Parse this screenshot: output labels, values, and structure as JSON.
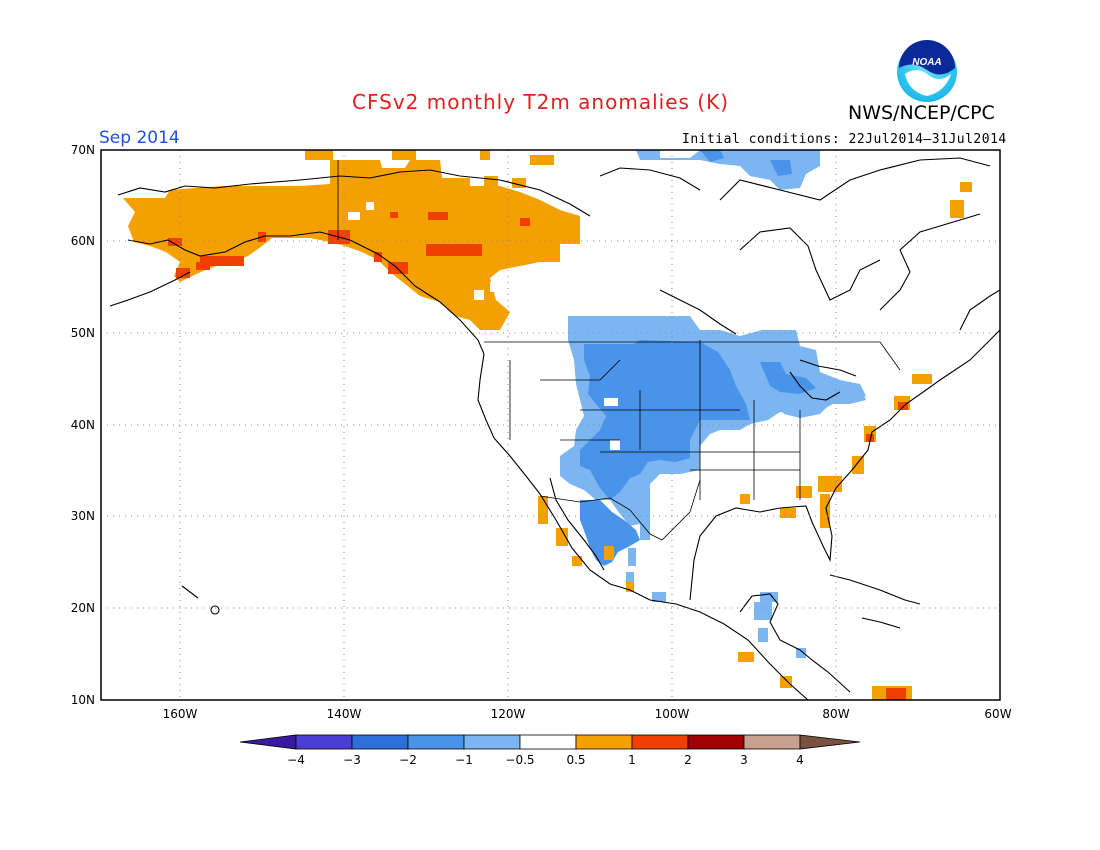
{
  "header": {
    "title": "CFSv2 monthly T2m anomalies (K)",
    "org": "NWS/NCEP/CPC",
    "valid_month": "Sep 2014",
    "initial_conditions": "Initial conditions: 22Jul2014–31Jul2014",
    "logo_text": "NOAA"
  },
  "map": {
    "lon_labels": [
      "160W",
      "140W",
      "120W",
      "100W",
      "80W",
      "60W"
    ],
    "lat_labels": [
      "70N",
      "60N",
      "50N",
      "40N",
      "30N",
      "20N",
      "10N"
    ]
  },
  "colorbar": {
    "tick_labels": [
      "−4",
      "−3",
      "−2",
      "−1",
      "−0.5",
      "0.5",
      "1",
      "2",
      "3",
      "4"
    ],
    "colors": [
      "#3a1aa0",
      "#4a3fd0",
      "#2d6fd8",
      "#4a93ea",
      "#7cb6f2",
      "#ffffff",
      "#f4a000",
      "#f04000",
      "#a00000",
      "#c8a090",
      "#7a5040"
    ]
  }
}
